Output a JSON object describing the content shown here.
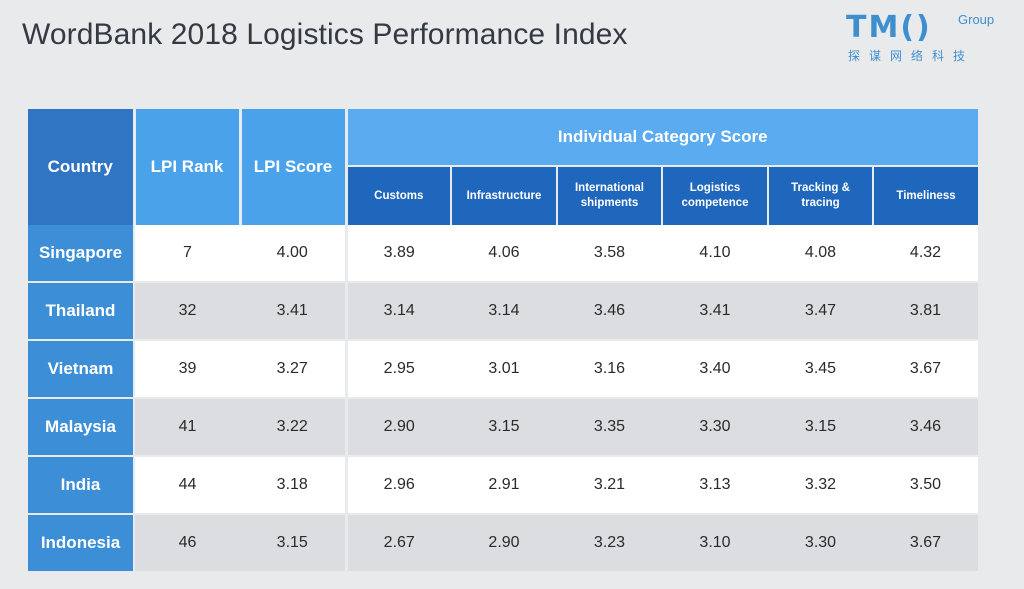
{
  "title": "WordBank 2018 Logistics Performance Index",
  "logo": {
    "main": "TM()",
    "group": "Group",
    "subtitle": "探谋网络科技"
  },
  "table": {
    "headers": {
      "country": "Country",
      "rank": "LPI Rank",
      "score": "LPI Score",
      "group": "Individual Category Score",
      "categories": [
        "Customs",
        "Infrastructure",
        "International\nshipments",
        "Logistics\ncompetence",
        "Tracking &\ntracing",
        "Timeliness"
      ]
    },
    "rows": [
      {
        "country": "Singapore",
        "rank": "7",
        "score": "4.00",
        "values": [
          "3.89",
          "4.06",
          "3.58",
          "4.10",
          "4.08",
          "4.32"
        ]
      },
      {
        "country": "Thailand",
        "rank": "32",
        "score": "3.41",
        "values": [
          "3.14",
          "3.14",
          "3.46",
          "3.41",
          "3.47",
          "3.81"
        ]
      },
      {
        "country": "Vietnam",
        "rank": "39",
        "score": "3.27",
        "values": [
          "2.95",
          "3.01",
          "3.16",
          "3.40",
          "3.45",
          "3.67"
        ]
      },
      {
        "country": "Malaysia",
        "rank": "41",
        "score": "3.22",
        "values": [
          "2.90",
          "3.15",
          "3.35",
          "3.30",
          "3.15",
          "3.46"
        ]
      },
      {
        "country": "India",
        "rank": "44",
        "score": "3.18",
        "values": [
          "2.96",
          "2.91",
          "3.21",
          "3.13",
          "3.32",
          "3.50"
        ]
      },
      {
        "country": "Indonesia",
        "rank": "46",
        "score": "3.15",
        "values": [
          "2.67",
          "2.90",
          "3.23",
          "3.10",
          "3.30",
          "3.67"
        ]
      }
    ]
  },
  "colors": {
    "background": "#e9eaec",
    "country_header": "#2f75c4",
    "rank_header": "#4aa3ea",
    "group_header": "#5aabf0",
    "category_header": "#1f66bd",
    "country_cell": "#3c8ed6",
    "row_alt": "#dcdde1"
  }
}
